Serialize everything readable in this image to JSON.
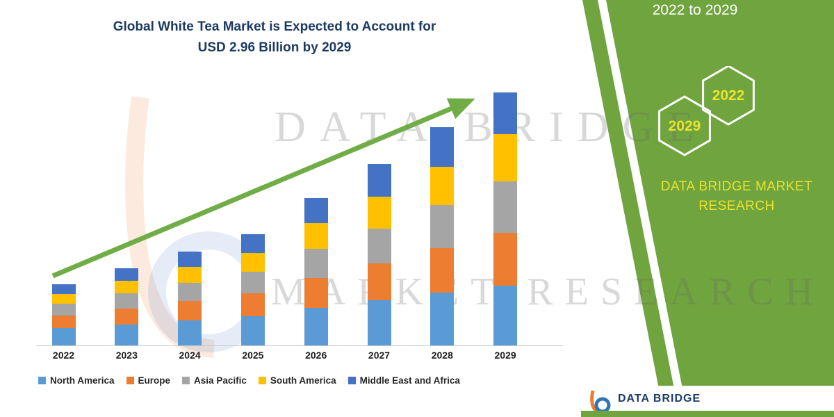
{
  "title": {
    "line1": "Global White Tea Market is Expected to Account for",
    "line2": "USD 2.96 Billion by 2029"
  },
  "right_panel": {
    "range_text": "2022 to 2029",
    "hexagons": [
      {
        "year": "2029"
      },
      {
        "year": "2022"
      }
    ],
    "brand_line1": "DATA BRIDGE MARKET",
    "brand_line2": "RESEARCH",
    "panel_green": "#6fa43e",
    "year_text_color": "#e9e32c"
  },
  "watermark": {
    "line1": "DATA BRIDGE",
    "line2": "MARKET RESEARCH"
  },
  "footer_logo": {
    "brand": "DATA BRIDGE"
  },
  "chart_data": {
    "type": "bar",
    "stacked": true,
    "title": "Global White Tea Market is Expected to Account for USD 2.96 Billion by 2029",
    "unit": "USD Billion",
    "categories": [
      "2022",
      "2023",
      "2024",
      "2025",
      "2026",
      "2027",
      "2028",
      "2029"
    ],
    "series": [
      {
        "name": "North America",
        "color": "#5b9bd5",
        "values": [
          0.2,
          0.24,
          0.29,
          0.34,
          0.44,
          0.53,
          0.62,
          0.7
        ]
      },
      {
        "name": "Europe",
        "color": "#ed7d31",
        "values": [
          0.15,
          0.19,
          0.23,
          0.27,
          0.35,
          0.43,
          0.52,
          0.62
        ]
      },
      {
        "name": "Asia Pacific",
        "color": "#a5a5a5",
        "values": [
          0.14,
          0.18,
          0.21,
          0.25,
          0.34,
          0.41,
          0.5,
          0.6
        ]
      },
      {
        "name": "South America",
        "color": "#ffc000",
        "values": [
          0.11,
          0.15,
          0.19,
          0.22,
          0.3,
          0.37,
          0.45,
          0.55
        ]
      },
      {
        "name": "Middle East and Africa",
        "color": "#4472c4",
        "values": [
          0.11,
          0.15,
          0.18,
          0.22,
          0.29,
          0.38,
          0.46,
          0.49
        ]
      }
    ],
    "totals": [
      0.71,
      0.91,
      1.1,
      1.3,
      1.72,
      2.12,
      2.55,
      2.96
    ],
    "ylim": [
      0,
      3.2
    ],
    "legend_position": "bottom",
    "grid": false,
    "annotations": [
      "upward green trend arrow from 2022 to 2029"
    ],
    "arrow_color": "#70ad47"
  }
}
